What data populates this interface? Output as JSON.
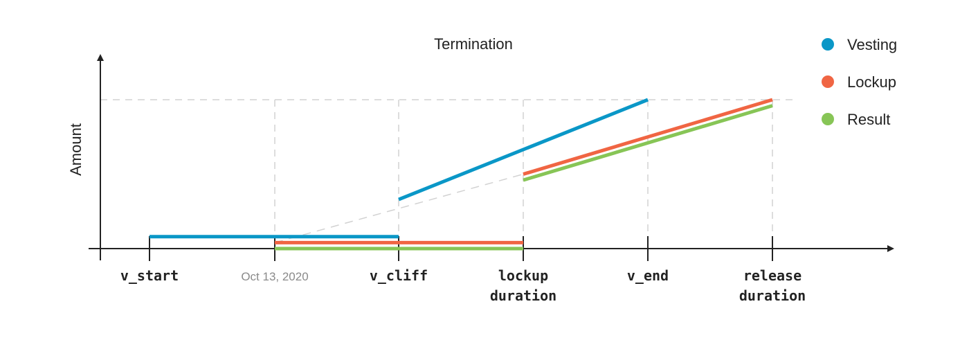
{
  "chart_data": {
    "type": "line",
    "title": "Termination",
    "ylabel": "Amount",
    "xlabel": "",
    "categories": [
      {
        "lines": [
          "v_start"
        ],
        "style": "mono"
      },
      {
        "lines": [
          "Oct 13, 2020"
        ],
        "style": "date"
      },
      {
        "lines": [
          "v_cliff"
        ],
        "style": "mono"
      },
      {
        "lines": [
          "lockup",
          "duration"
        ],
        "style": "mono"
      },
      {
        "lines": [
          "v_end"
        ],
        "style": "mono"
      },
      {
        "lines": [
          "release",
          "duration"
        ],
        "style": "mono"
      }
    ],
    "ylim": [
      0,
      1
    ],
    "grid": {
      "vertical": "dashed",
      "max_level_dashed": true
    },
    "legend_position": "top-right",
    "series": [
      {
        "name": "Vesting",
        "color": "#0a97c7",
        "segments": [
          [
            [
              0,
              0.08
            ],
            [
              2,
              0.08
            ]
          ],
          [
            [
              2,
              0.33
            ],
            [
              4,
              1.0
            ]
          ]
        ]
      },
      {
        "name": "Lockup",
        "color": "#f06543",
        "segments": [
          [
            [
              1,
              0.04
            ],
            [
              3,
              0.04
            ]
          ],
          [
            [
              3,
              0.5
            ],
            [
              5,
              1.0
            ]
          ]
        ]
      },
      {
        "name": "Result",
        "color": "#87c556",
        "segments": [
          [
            [
              1,
              0.0
            ],
            [
              3,
              0.0
            ]
          ],
          [
            [
              3,
              0.46
            ],
            [
              5,
              0.96
            ]
          ]
        ]
      }
    ],
    "annotations": [
      {
        "type": "dashed-guide",
        "color": "#d2d2d2",
        "points": [
          [
            1,
            0.04
          ],
          [
            3,
            0.5
          ]
        ]
      }
    ]
  }
}
